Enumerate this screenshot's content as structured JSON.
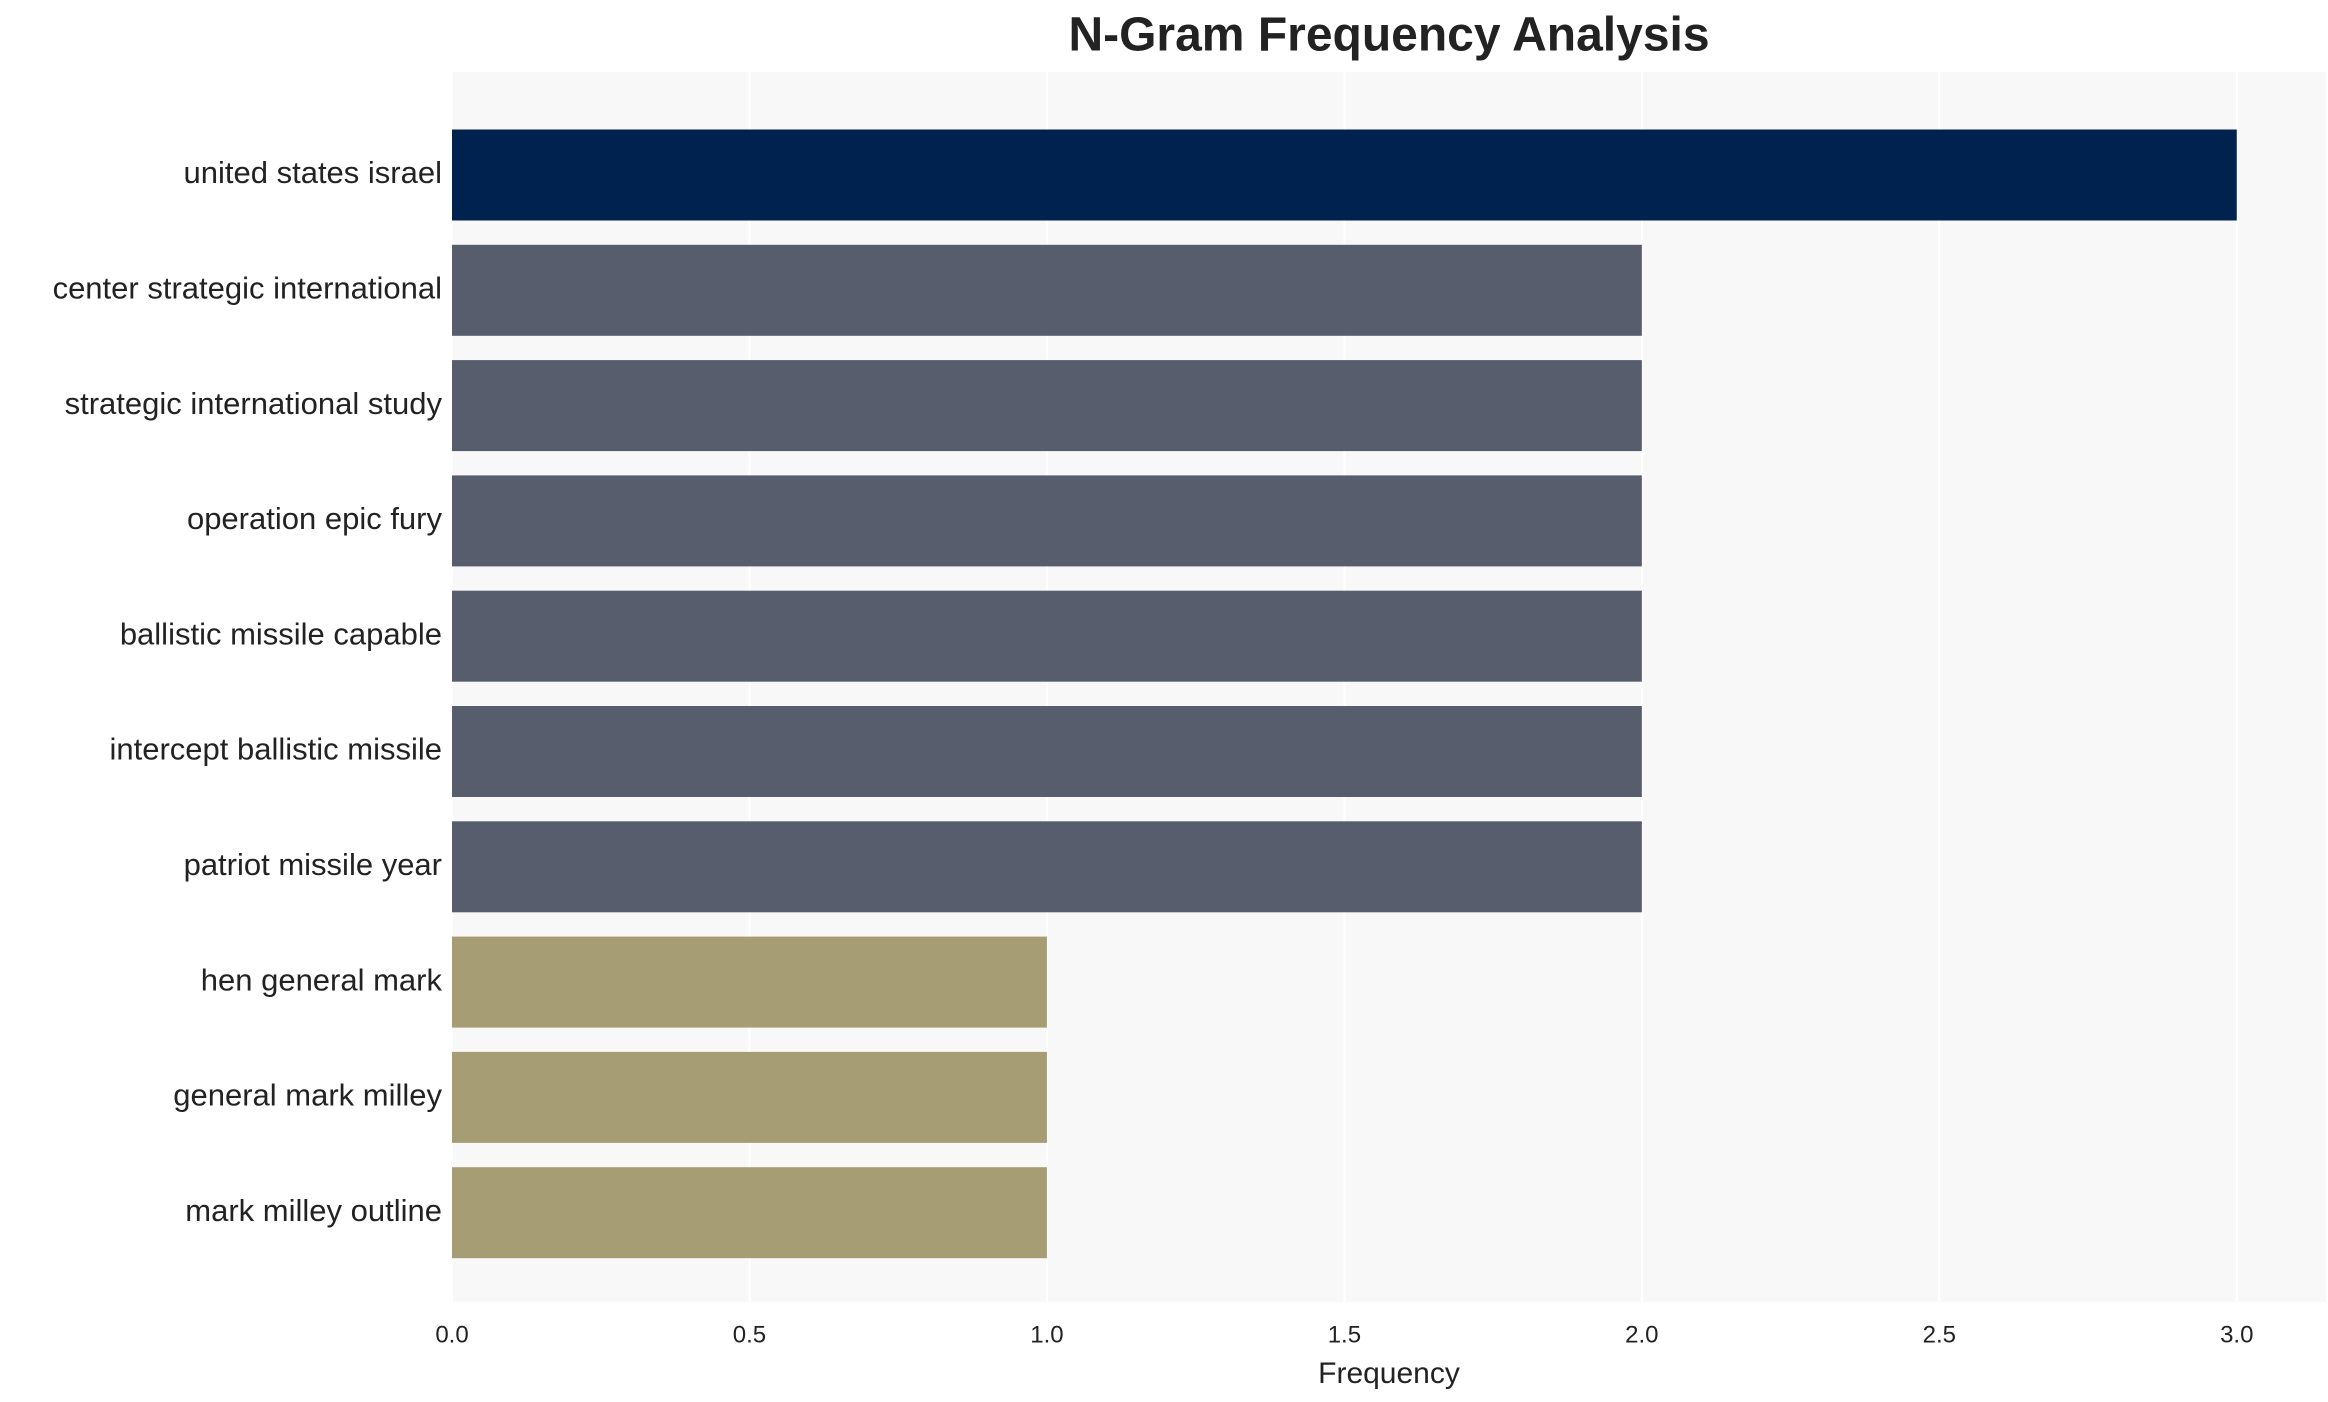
{
  "chart_data": {
    "type": "barh",
    "title": "N-Gram Frequency Analysis",
    "x_label": "Frequency",
    "categories": [
      "united states israel",
      "center strategic international",
      "strategic international study",
      "operation epic fury",
      "ballistic missile capable",
      "intercept ballistic missile",
      "patriot missile year",
      "hen general mark",
      "general mark milley",
      "mark milley outline"
    ],
    "values": [
      3,
      2,
      2,
      2,
      2,
      2,
      2,
      1,
      1,
      1
    ],
    "colors": [
      "#00224e",
      "#575d6d",
      "#575d6d",
      "#575d6d",
      "#575d6d",
      "#575d6d",
      "#575d6d",
      "#a69d75",
      "#a69d75",
      "#a69d75"
    ],
    "xlim": [
      0,
      3.15
    ],
    "xticks": [
      {
        "value": 0,
        "label": "0.0"
      },
      {
        "value": 0.5,
        "label": "0.5"
      },
      {
        "value": 1,
        "label": "1.0"
      },
      {
        "value": 1.5,
        "label": "1.5"
      },
      {
        "value": 2,
        "label": "2.0"
      },
      {
        "value": 2.5,
        "label": "2.5"
      },
      {
        "value": 3,
        "label": "3.0"
      }
    ],
    "grid": true
  }
}
